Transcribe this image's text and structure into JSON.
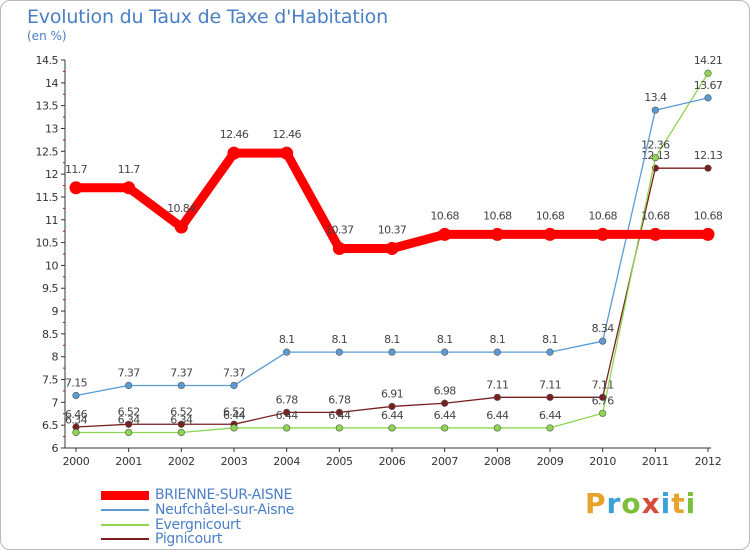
{
  "header": {
    "title": "Evolution du Taux de Taxe d'Habitation",
    "subtitle": "(en %)"
  },
  "logo": {
    "text": "Proxiti",
    "colors": [
      "#e8a22a",
      "#3aa0d8",
      "#7bbf3a",
      "#d94a3a",
      "#3aa0d8",
      "#e8a22a",
      "#7bbf3a"
    ]
  },
  "chart_data": {
    "type": "line",
    "title": "Evolution du Taux de Taxe d'Habitation",
    "ylabel": "(en %)",
    "xlabel": "",
    "x": [
      "2000",
      "2001",
      "2002",
      "2003",
      "2004",
      "2005",
      "2006",
      "2007",
      "2008",
      "2009",
      "2010",
      "2011",
      "2012"
    ],
    "ylim": [
      6,
      14.5
    ],
    "yticks": [
      "6",
      "6.5",
      "7",
      "7.5",
      "8",
      "8.5",
      "9",
      "9.5",
      "10",
      "10.5",
      "11",
      "11.5",
      "12",
      "12.5",
      "13",
      "13.5",
      "14",
      "14.5"
    ],
    "grid": false,
    "legend_position": "bottom-left",
    "series": [
      {
        "name": "BRIENNE-SUR-AISNE",
        "color": "#ff0000",
        "values": [
          11.7,
          11.7,
          10.84,
          12.46,
          12.46,
          10.37,
          10.37,
          10.68,
          10.68,
          10.68,
          10.68,
          10.68,
          10.68
        ],
        "labels": [
          "11.7",
          "11.7",
          "10.84",
          "12.46",
          "12.46",
          "10.37",
          "10.37",
          "10.68",
          "10.68",
          "10.68",
          "10.68",
          "10.68",
          "10.68"
        ]
      },
      {
        "name": "Neufchâtel-sur-Aisne",
        "color": "#5b9bd5",
        "values": [
          7.15,
          7.37,
          7.37,
          7.37,
          8.1,
          8.1,
          8.1,
          8.1,
          8.1,
          8.1,
          8.34,
          13.4,
          13.67
        ],
        "labels": [
          "7.15",
          "7.37",
          "7.37",
          "7.37",
          "8.1",
          "8.1",
          "8.1",
          "8.1",
          "8.1",
          "8.1",
          "8.34",
          "13.4",
          "13.67"
        ]
      },
      {
        "name": "Evergnicourt",
        "color": "#8ed64f",
        "values": [
          6.34,
          6.34,
          6.34,
          6.44,
          6.44,
          6.44,
          6.44,
          6.44,
          6.44,
          6.44,
          6.76,
          12.36,
          14.21
        ],
        "labels": [
          "6.34",
          "6.34",
          "6.34",
          "6.44",
          "6.44",
          "6.44",
          "6.44",
          "6.44",
          "6.44",
          "6.44",
          "6.76",
          "12.36",
          "14.21"
        ]
      },
      {
        "name": "Pignicourt",
        "color": "#7a1f1f",
        "values": [
          6.46,
          6.52,
          6.52,
          6.52,
          6.78,
          6.78,
          6.91,
          6.98,
          7.11,
          7.11,
          7.11,
          12.13,
          12.13
        ],
        "labels": [
          "6.46",
          "6.52",
          "6.52",
          "6.52",
          "6.78",
          "6.78",
          "6.91",
          "6.98",
          "7.11",
          "7.11",
          "7.11",
          "12.13",
          "12.13"
        ]
      }
    ]
  }
}
